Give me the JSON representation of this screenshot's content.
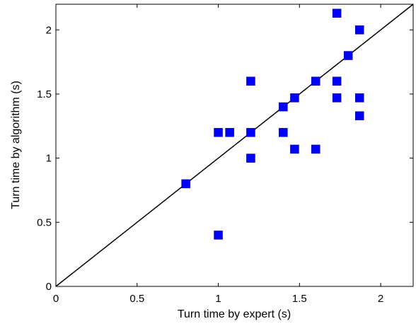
{
  "chart_data": {
    "type": "scatter",
    "xlabel": "Turn time by expert (s)",
    "ylabel": "Turn time by algorithm (s)",
    "xlim": [
      0,
      2.2
    ],
    "ylim": [
      0,
      2.2
    ],
    "x_ticks": [
      0,
      0.5,
      1,
      1.5,
      2
    ],
    "y_ticks": [
      0,
      0.5,
      1,
      1.5,
      2
    ],
    "x_tick_labels": [
      "0",
      "0.5",
      "1",
      "1.5",
      "2"
    ],
    "y_tick_labels": [
      "0",
      "0.5",
      "1",
      "1.5",
      "2"
    ],
    "grid": false,
    "marker": "square",
    "marker_color": "#0000ff",
    "reference_line": {
      "x": [
        0,
        2.2
      ],
      "y": [
        0,
        2.2
      ],
      "color": "#000000"
    },
    "points": [
      {
        "x": 0.8,
        "y": 0.8
      },
      {
        "x": 1.0,
        "y": 0.4
      },
      {
        "x": 1.0,
        "y": 1.2
      },
      {
        "x": 1.07,
        "y": 1.2
      },
      {
        "x": 1.2,
        "y": 1.2
      },
      {
        "x": 1.2,
        "y": 1.0
      },
      {
        "x": 1.2,
        "y": 1.6
      },
      {
        "x": 1.4,
        "y": 1.2
      },
      {
        "x": 1.4,
        "y": 1.4
      },
      {
        "x": 1.47,
        "y": 1.07
      },
      {
        "x": 1.47,
        "y": 1.47
      },
      {
        "x": 1.6,
        "y": 1.07
      },
      {
        "x": 1.6,
        "y": 1.6
      },
      {
        "x": 1.73,
        "y": 2.13
      },
      {
        "x": 1.73,
        "y": 1.6
      },
      {
        "x": 1.73,
        "y": 1.47
      },
      {
        "x": 1.8,
        "y": 1.8
      },
      {
        "x": 1.87,
        "y": 2.0
      },
      {
        "x": 1.87,
        "y": 1.47
      },
      {
        "x": 1.87,
        "y": 1.33
      }
    ]
  }
}
